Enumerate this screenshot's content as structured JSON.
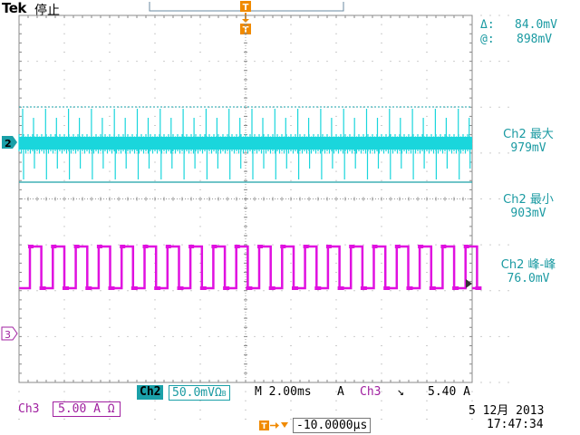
{
  "header": {
    "brand": "Tek",
    "state": "停止",
    "trigger_marker": "T"
  },
  "cursor": {
    "delta_label": "Δ:",
    "delta_value": "84.0mV",
    "at_label": "@:",
    "at_value": "898mV"
  },
  "measurements": [
    {
      "label": "Ch2 最大",
      "value": "979mV"
    },
    {
      "label": "Ch2 最小",
      "value": "903mV"
    },
    {
      "label": "Ch2 峰-峰",
      "value": "76.0mV"
    }
  ],
  "channel_markers": {
    "ch2": "2",
    "ch3": "3"
  },
  "status": {
    "ch2_label": "Ch2",
    "ch2_scale": "50.0mVΩ",
    "ch2_bw": "B",
    "timebase": "M 2.00ms",
    "acq_mode": "A",
    "trig_source": "Ch3",
    "trig_slope": "↘",
    "trig_level": "5.40 A",
    "ch3_label": "Ch3",
    "ch3_scale": "5.00 A Ω",
    "trigger_pos_value": "-10.0000µs",
    "date": "5 12月 2013",
    "time": "17:47:34"
  },
  "colors": {
    "ch2": "#1ad6dc",
    "ch3": "#e010e0",
    "ch2_text": "#1a9aa2",
    "ch3_text": "#a020a0",
    "trigger": "#f08a00"
  }
}
